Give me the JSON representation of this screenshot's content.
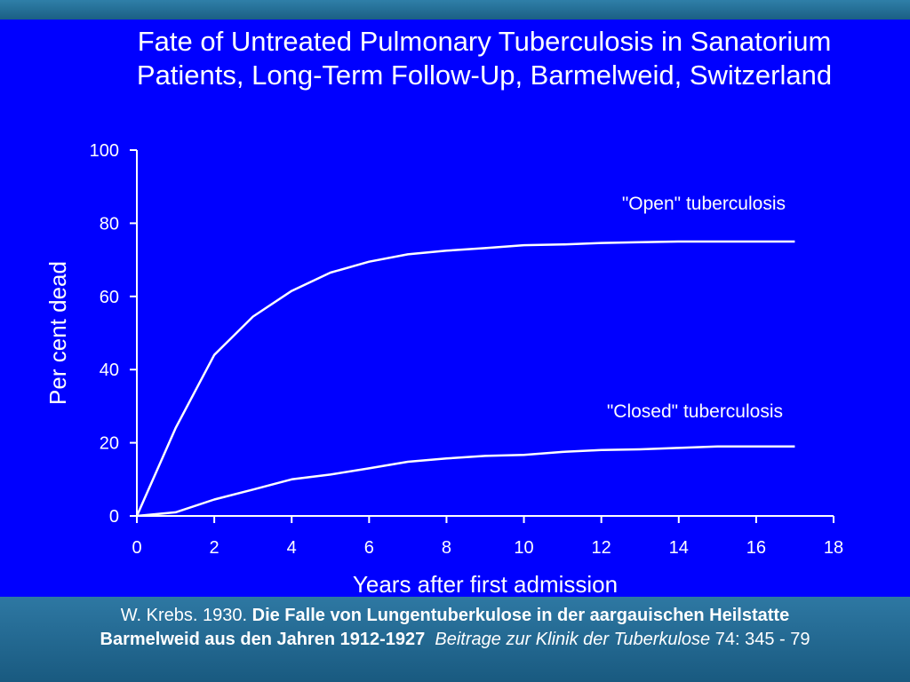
{
  "slide": {
    "title_line1": "Fate of Untreated Pulmonary Tuberculosis in Sanatorium",
    "title_line2": "Patients, Long-Term Follow-Up, Barmelweid, Switzerland"
  },
  "citation": {
    "author": "W. Krebs. 1930. ",
    "title_bold_line1": "Die Falle von Lungentuberkulose in der aargauischen Heilstatte",
    "title_bold_line2": "Barmelweid aus den Jahren 1912-1927",
    "journal_italic": "Beitrage zur Klinik der Tuberkulose",
    "volume_pages": " 74: 345 - 79"
  },
  "colors": {
    "slide_background": "#0000ff",
    "band_background": "#1f5f86",
    "line_color": "#ffffff",
    "text_color": "#ffffff"
  },
  "chart_data": {
    "type": "line",
    "title": "",
    "xlabel": "Years after first admission",
    "ylabel": "Per cent dead",
    "xlim": [
      0,
      18
    ],
    "ylim": [
      0,
      100
    ],
    "xticks": [
      0,
      2,
      4,
      6,
      8,
      10,
      12,
      14,
      16,
      18
    ],
    "yticks": [
      0,
      20,
      40,
      60,
      80,
      100
    ],
    "grid": false,
    "legend": "none",
    "series": [
      {
        "name": "\"Open\" tuberculosis",
        "x": [
          0,
          1,
          2,
          3,
          4,
          5,
          6,
          7,
          8,
          9,
          10,
          11,
          12,
          13,
          14,
          15,
          16,
          17
        ],
        "y": [
          0,
          24,
          44,
          54.5,
          61.5,
          66.5,
          69.5,
          71.5,
          72.5,
          73.2,
          74,
          74.2,
          74.6,
          74.8,
          75,
          75,
          75,
          75
        ]
      },
      {
        "name": "\"Closed\" tuberculosis",
        "x": [
          0,
          1,
          2,
          3,
          4,
          5,
          6,
          7,
          8,
          9,
          10,
          11,
          12,
          13,
          14,
          15,
          16,
          17
        ],
        "y": [
          0,
          1,
          4.5,
          7.2,
          10,
          11.3,
          13,
          14.8,
          15.7,
          16.4,
          16.7,
          17.5,
          18,
          18.2,
          18.6,
          19,
          19,
          19
        ]
      }
    ]
  }
}
